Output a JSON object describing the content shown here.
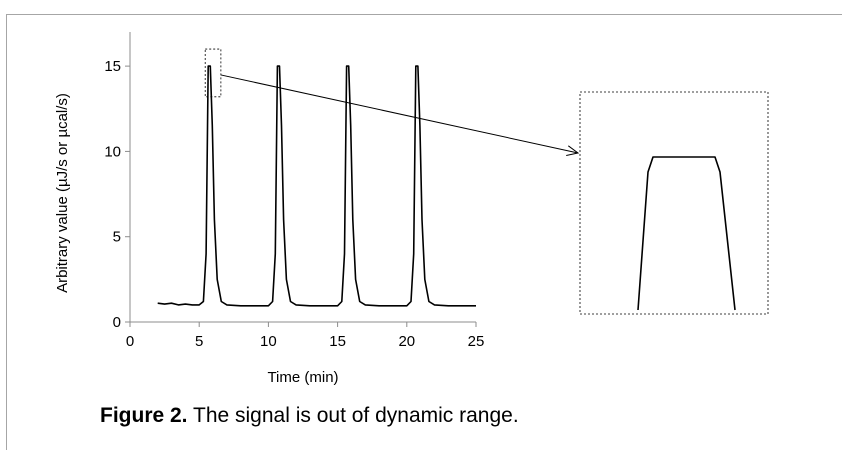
{
  "caption": {
    "label": "Figure 2.",
    "text": " The signal is out of dynamic range."
  },
  "chart_data": {
    "type": "line",
    "title": "",
    "xlabel": "Time (min)",
    "ylabel": "Arbitrary value (µJ/s or µcal/s)",
    "xlim": [
      0,
      25
    ],
    "ylim": [
      0,
      17
    ],
    "x_ticks": [
      0,
      5,
      10,
      15,
      20,
      25
    ],
    "y_ticks": [
      0,
      5,
      10,
      15
    ],
    "grid": false,
    "legend": "none",
    "line_color": "#000000",
    "series": [
      {
        "x": [
          2.0,
          2.5,
          3.0,
          3.5,
          4.0,
          4.5,
          5.0,
          5.3,
          5.5,
          5.65,
          5.8,
          5.95,
          6.1,
          6.3,
          6.6,
          7.0,
          8.0,
          9.0,
          10.0,
          10.3,
          10.5,
          10.65,
          10.8,
          10.95,
          11.1,
          11.3,
          11.6,
          12.0,
          13.0,
          14.0,
          15.0,
          15.3,
          15.5,
          15.65,
          15.8,
          15.95,
          16.1,
          16.3,
          16.6,
          17.0,
          18.0,
          19.0,
          20.0,
          20.3,
          20.5,
          20.65,
          20.8,
          20.95,
          21.1,
          21.3,
          21.6,
          22.0,
          23.0,
          24.0,
          25.0
        ],
        "y": [
          1.1,
          1.05,
          1.1,
          1.0,
          1.05,
          1.0,
          1.0,
          1.2,
          4.0,
          15.0,
          15.0,
          11.5,
          6.0,
          2.5,
          1.2,
          1.0,
          0.95,
          0.95,
          0.95,
          1.2,
          4.0,
          15.0,
          15.0,
          11.5,
          6.0,
          2.5,
          1.2,
          1.0,
          0.95,
          0.95,
          0.95,
          1.2,
          4.0,
          15.0,
          15.0,
          11.5,
          6.0,
          2.5,
          1.2,
          1.0,
          0.95,
          0.95,
          0.95,
          1.2,
          4.0,
          15.0,
          15.0,
          11.5,
          6.0,
          2.5,
          1.2,
          1.0,
          0.95,
          0.95,
          0.95
        ]
      }
    ],
    "zoom_inset": {
      "x_range": [
        5.0,
        7.0
      ],
      "y_range": [
        13.2,
        16.0
      ]
    }
  }
}
